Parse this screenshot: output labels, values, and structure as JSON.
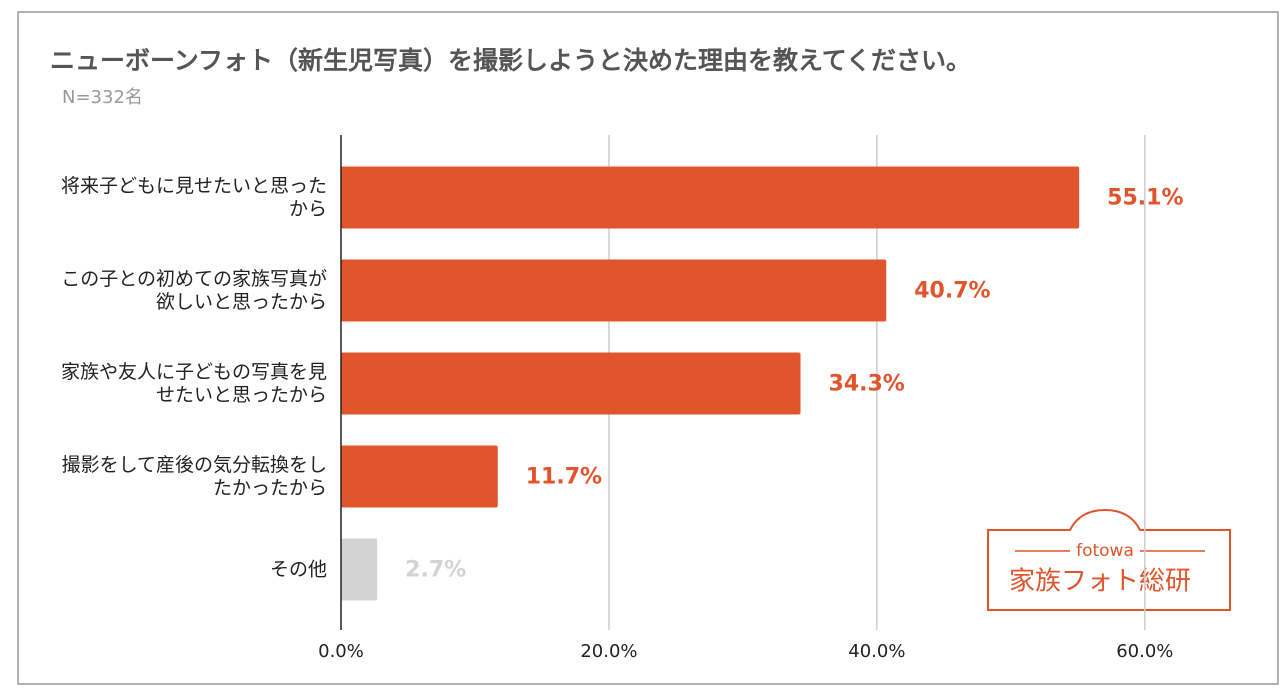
{
  "chart_data": {
    "type": "barh",
    "title": "ニューボーンフォト（新生児写真）を撮影しようと決めた理由を教えてください。",
    "subtitle": "N=332名",
    "categories": [
      "将来子どもに見せたいと思ったから",
      "この子との初めての家族写真が欲しいと思ったから",
      "家族や友人に子どもの写真を見せたいと思ったから",
      "撮影をして産後の気分転換をしたかったから",
      "その他"
    ],
    "values": [
      55.1,
      40.7,
      34.3,
      11.7,
      2.7
    ],
    "value_labels": [
      "55.1%",
      "40.7%",
      "34.3%",
      "11.7%",
      "2.7%"
    ],
    "colors": [
      "#e0552b",
      "#e0552b",
      "#e0552b",
      "#e0552b",
      "#d3d3d3"
    ],
    "xlim": [
      0,
      68
    ],
    "xticks": [
      {
        "value": 0,
        "label": "0.0%"
      },
      {
        "value": 20,
        "label": "20.0%"
      },
      {
        "value": 40,
        "label": "40.0%"
      },
      {
        "value": 60,
        "label": "60.0%"
      }
    ],
    "grid": true
  },
  "logo": {
    "brand": "fotowa",
    "name": "家族フォト総研"
  }
}
